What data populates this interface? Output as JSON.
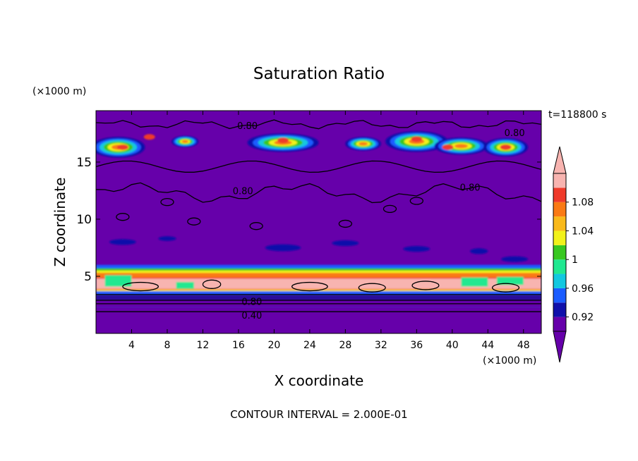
{
  "chart_data": {
    "type": "heatmap",
    "title": "Saturation Ratio",
    "xlabel": "X coordinate",
    "ylabel": "Z coordinate",
    "x_unit": "(×1000 m)",
    "y_unit": "(×1000 m)",
    "time_label": "t=118800 s",
    "footer": "CONTOUR INTERVAL = 2.000E-01",
    "xlim": [
      0,
      50
    ],
    "ylim": [
      0,
      19.5
    ],
    "x_ticks": [
      4,
      8,
      12,
      16,
      20,
      24,
      28,
      32,
      36,
      40,
      44,
      48
    ],
    "y_ticks": [
      5,
      10,
      15
    ],
    "contour_labels": [
      {
        "text": "0.80",
        "x": 17,
        "z": 18.2
      },
      {
        "text": "0.80",
        "x": 47,
        "z": 17.6
      },
      {
        "text": "0.80",
        "x": 16.5,
        "z": 12.5
      },
      {
        "text": "0.80",
        "x": 42,
        "z": 12.8
      },
      {
        "text": "0.80",
        "x": 17.5,
        "z": 2.8
      },
      {
        "text": "0.40",
        "x": 17.5,
        "z": 1.6
      }
    ],
    "colorbar": {
      "levels": [
        "0.92",
        "0.96",
        "1",
        "1.04",
        "1.08"
      ],
      "colors": [
        "#6600aa",
        "#1010aa",
        "#1a5cff",
        "#12c8e0",
        "#20e890",
        "#38c820",
        "#f2f21a",
        "#f9b91a",
        "#fa7a14",
        "#ef3a2a",
        "#f8b4b0"
      ]
    }
  }
}
